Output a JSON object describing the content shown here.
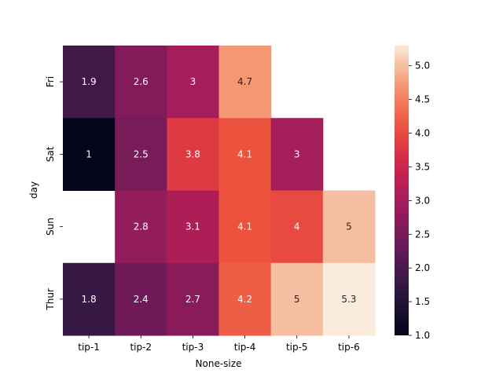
{
  "chart_data": {
    "type": "heatmap",
    "title": "",
    "xlabel": "None-size",
    "ylabel": "day",
    "x_categories": [
      "tip-1",
      "tip-2",
      "tip-3",
      "tip-4",
      "tip-5",
      "tip-6"
    ],
    "y_categories": [
      "Fri",
      "Sat",
      "Sun",
      "Thur"
    ],
    "values": [
      [
        1.9,
        2.6,
        3,
        4.7,
        null,
        null
      ],
      [
        1,
        2.5,
        3.8,
        4.1,
        3,
        null
      ],
      [
        null,
        2.8,
        3.1,
        4.1,
        4,
        5
      ],
      [
        1.8,
        2.4,
        2.7,
        4.2,
        5,
        5.3
      ]
    ],
    "labels": [
      [
        "1.9",
        "2.6",
        "3",
        "4.7",
        "",
        ""
      ],
      [
        "1",
        "2.5",
        "3.8",
        "4.1",
        "3",
        ""
      ],
      [
        "",
        "2.8",
        "3.1",
        "4.1",
        "4",
        "5"
      ],
      [
        "1.8",
        "2.4",
        "2.7",
        "4.2",
        "5",
        "5.3"
      ]
    ],
    "vmin": 1.0,
    "vmax": 5.3,
    "colormap": "rocket",
    "colorbar_ticks": [
      "1.0",
      "1.5",
      "2.0",
      "2.5",
      "3.0",
      "3.5",
      "4.0",
      "4.5",
      "5.0"
    ],
    "grid": false,
    "legend": "colorbar-right"
  }
}
